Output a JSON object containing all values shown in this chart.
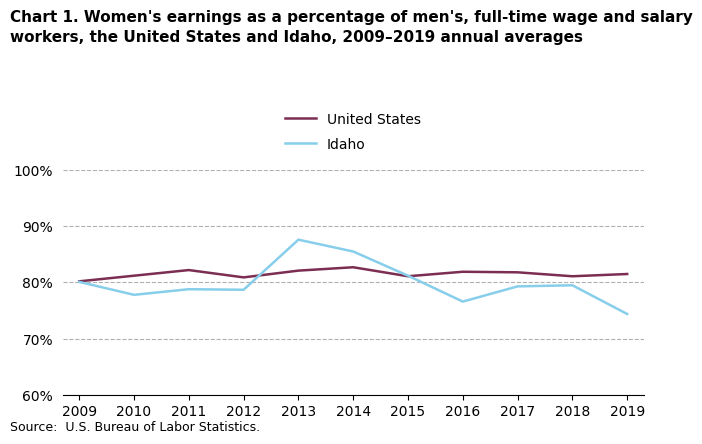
{
  "title": "Chart 1. Women's earnings as a percentage of men's, full-time wage and salary\nworkers, the United States and Idaho, 2009–2019 annual averages",
  "years": [
    2009,
    2010,
    2011,
    2012,
    2013,
    2014,
    2015,
    2016,
    2017,
    2018,
    2019
  ],
  "us_values": [
    80.2,
    81.2,
    82.2,
    80.9,
    82.1,
    82.7,
    81.1,
    81.9,
    81.8,
    81.1,
    81.5
  ],
  "idaho_values": [
    80.1,
    77.8,
    78.8,
    78.7,
    87.6,
    85.5,
    81.2,
    76.6,
    79.3,
    79.5,
    74.4
  ],
  "us_color": "#7B2D52",
  "idaho_color": "#87CEEB",
  "us_label": "United States",
  "idaho_label": "Idaho",
  "ylim": [
    60,
    100
  ],
  "yticks": [
    60,
    70,
    80,
    90,
    100
  ],
  "xlim_min": 2009,
  "xlim_max": 2019,
  "source": "Source:  U.S. Bureau of Labor Statistics.",
  "title_fontsize": 11,
  "legend_fontsize": 10,
  "tick_fontsize": 10,
  "source_fontsize": 9,
  "line_width": 1.8,
  "grid_color": "#b0b0b0",
  "grid_style": "--"
}
